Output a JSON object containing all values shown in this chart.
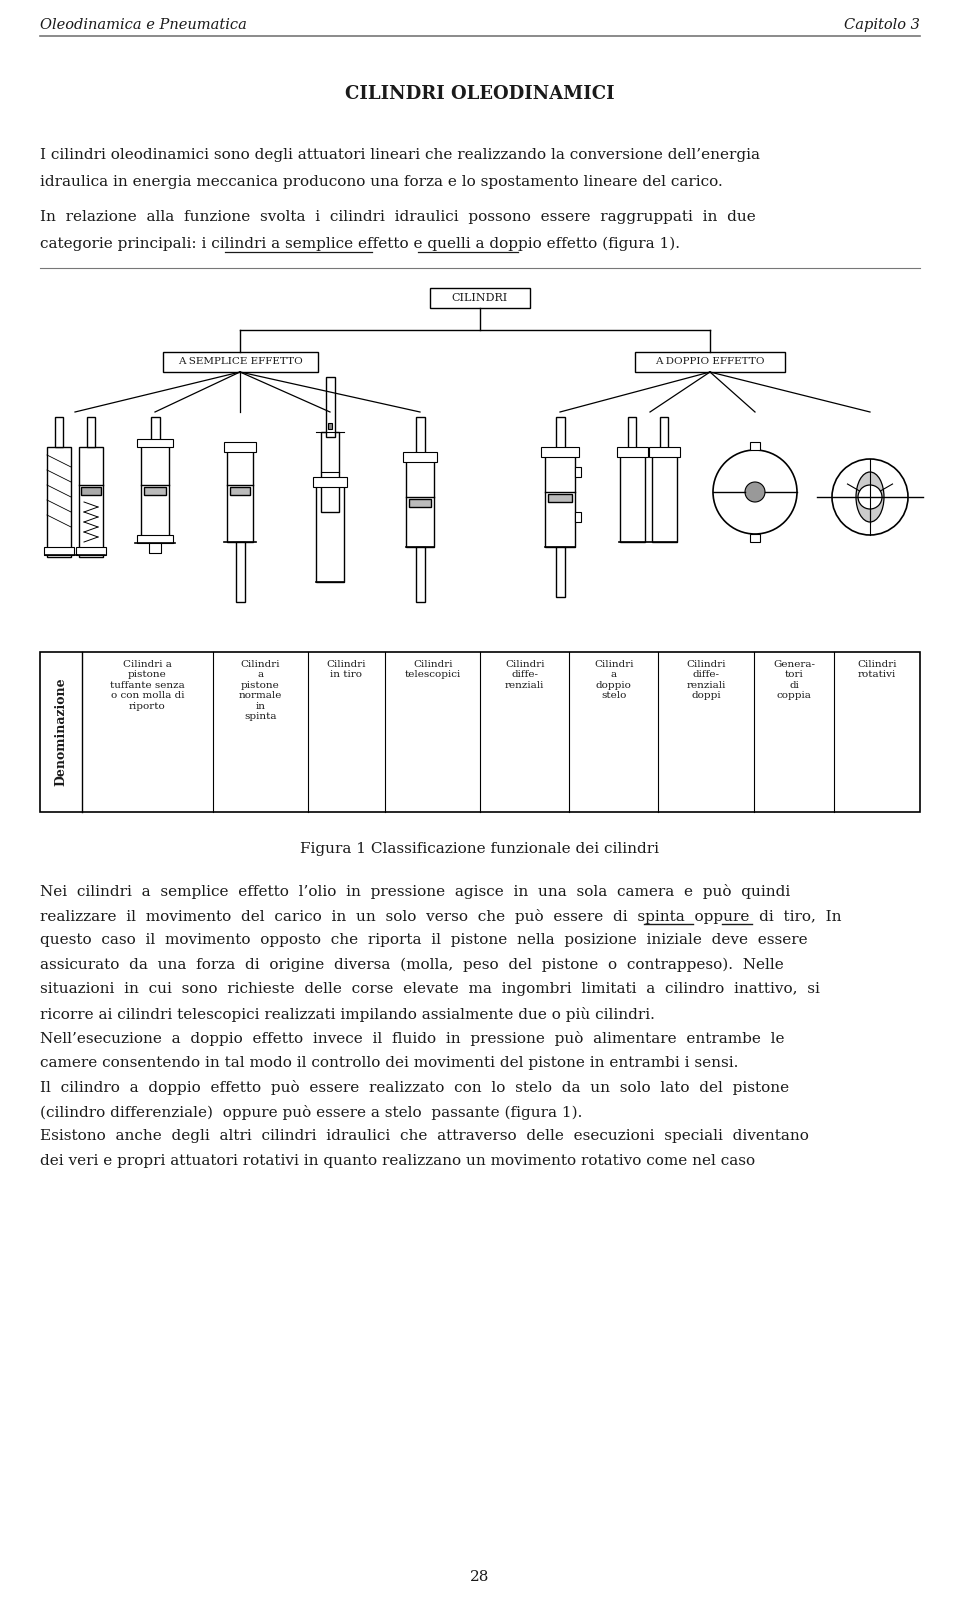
{
  "header_left": "Oleodinamica e Pneumatica",
  "header_right": "Capitolo 3",
  "title": "CILINDRI OLEODINAMICI",
  "p1_l1": "I cilindri oleodinamici sono degli attuatori lineari che realizzando la conversione dell’energia",
  "p1_l2": "idraulica in energia meccanica producono una forza e lo spostamento lineare del carico.",
  "p2_l1": "In  relazione  alla  funzione  svolta  i  cilindri  idraulici  possono  essere  raggruppati  in  due",
  "p2_l2": "categorie principali: i cilindri a semplice effetto e quelli a doppio effetto (figura 1).",
  "fig_caption": "Figura 1 Classificazione funzionale dei cilindri",
  "node_root": "CILINDRI",
  "node_left": "A SEMPLICE EFFETTO",
  "node_right": "A DOPPIO EFFETTO",
  "col_labels": [
    "Cilindri a\npistone\ntuffante senza\no con molla di\nriporto",
    "Cilindri\na\npistone\nnormale\nin\nspinta",
    "Cilindri\nin tiro",
    "Cilindri\ntelescopici",
    "Cilindri\ndiffe-\nrenziali",
    "Cilindri\na\ndoppio\nstelo",
    "Cilindri\ndiffe-\nrenziali\ndoppi",
    "Genera-\ntori\ndi\ncoppia",
    "Cilindri\nrotativi"
  ],
  "row_label": "Denominazione",
  "para3": [
    "Nei  cilindri  a  semplice  effetto  l’olio  in  pressione  agisce  in  una  sola  camera  e  può  quindi",
    "realizzare  il  movimento  del  carico  in  un  solo  verso  che  può  essere  di  spinta  oppure  di  tiro,  In",
    "questo  caso  il  movimento  opposto  che  riporta  il  pistone  nella  posizione  iniziale  deve  essere",
    "assicurato  da  una  forza  di  origine  diversa  (molla,  peso  del  pistone  o  contrappeso).  Nelle",
    "situazioni  in  cui  sono  richieste  delle  corse  elevate  ma  ingombri  limitati  a  cilindro  inattivo,  si",
    "ricorre ai cilindri telescopici realizzati impilando assialmente due o più cilindri.",
    "Nell’esecuzione  a  doppio  effetto  invece  il  fluido  in  pressione  può  alimentare  entrambe  le",
    "camere consentendo in tal modo il controllo dei movimenti del pistone in entrambi i sensi.",
    "Il  cilindro  a  doppio  effetto  può  essere  realizzato  con  lo  stelo  da  un  solo  lato  del  pistone",
    "(cilindro differenziale)  oppure può essere a stelo  passante (figura 1).",
    "Esistono  anche  degli  altri  cilindri  idraulici  che  attraverso  delle  esecuzioni  speciali  diventano",
    "dei veri e propri attuatori rotativi in quanto realizzano un movimento rotativo come nel caso"
  ],
  "page_number": "28",
  "bg_color": "#ffffff",
  "text_color": "#1a1a1a"
}
